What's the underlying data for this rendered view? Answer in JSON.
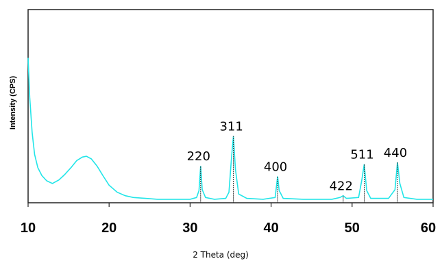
{
  "chart_data": {
    "type": "line",
    "xlabel": "2 Theta (deg)",
    "ylabel": "Intensity (CPS)",
    "xlim": [
      10,
      60
    ],
    "ylim": [
      0,
      220
    ],
    "grid": false,
    "legend": "none",
    "x_ticks": [
      10,
      20,
      30,
      40,
      50,
      60
    ],
    "x_tick_labels": [
      "10",
      "20",
      "30",
      "40",
      "50",
      "60"
    ],
    "series": [
      {
        "color": "#22e5e8",
        "points": [
          [
            10.0,
            165
          ],
          [
            10.2,
            120
          ],
          [
            10.5,
            80
          ],
          [
            10.8,
            55
          ],
          [
            11.2,
            40
          ],
          [
            11.7,
            31
          ],
          [
            12.3,
            25
          ],
          [
            13.0,
            22
          ],
          [
            13.8,
            26
          ],
          [
            14.5,
            32
          ],
          [
            15.3,
            40
          ],
          [
            16.0,
            48
          ],
          [
            16.7,
            52
          ],
          [
            17.2,
            53
          ],
          [
            17.8,
            50
          ],
          [
            18.5,
            42
          ],
          [
            19.3,
            30
          ],
          [
            20.0,
            20
          ],
          [
            21.0,
            12
          ],
          [
            22.0,
            8
          ],
          [
            23.0,
            6
          ],
          [
            24.5,
            5
          ],
          [
            26.0,
            4
          ],
          [
            28.0,
            4
          ],
          [
            30.0,
            4
          ],
          [
            30.8,
            6
          ],
          [
            31.1,
            14
          ],
          [
            31.3,
            42
          ],
          [
            31.5,
            15
          ],
          [
            31.9,
            6
          ],
          [
            33.0,
            4
          ],
          [
            34.4,
            5
          ],
          [
            34.8,
            12
          ],
          [
            35.1,
            50
          ],
          [
            35.35,
            76
          ],
          [
            35.6,
            38
          ],
          [
            36.0,
            10
          ],
          [
            37.0,
            5
          ],
          [
            39.0,
            4
          ],
          [
            40.5,
            6
          ],
          [
            40.8,
            30
          ],
          [
            41.0,
            14
          ],
          [
            41.5,
            5
          ],
          [
            44.0,
            4
          ],
          [
            47.5,
            4
          ],
          [
            48.5,
            6
          ],
          [
            48.9,
            8
          ],
          [
            49.3,
            5
          ],
          [
            50.8,
            6
          ],
          [
            51.2,
            26
          ],
          [
            51.5,
            44
          ],
          [
            51.8,
            14
          ],
          [
            52.3,
            5
          ],
          [
            54.5,
            5
          ],
          [
            55.3,
            15
          ],
          [
            55.6,
            46
          ],
          [
            55.9,
            22
          ],
          [
            56.4,
            6
          ],
          [
            58.0,
            4
          ],
          [
            60.0,
            4
          ]
        ]
      }
    ],
    "annotations": [
      {
        "text": "220",
        "x": 31.3,
        "y": 42
      },
      {
        "text": "311",
        "x": 35.35,
        "y": 76
      },
      {
        "text": "400",
        "x": 40.8,
        "y": 30
      },
      {
        "text": "422",
        "x": 48.9,
        "y": 8
      },
      {
        "text": "511",
        "x": 51.5,
        "y": 44
      },
      {
        "text": "440",
        "x": 55.6,
        "y": 46
      }
    ]
  }
}
